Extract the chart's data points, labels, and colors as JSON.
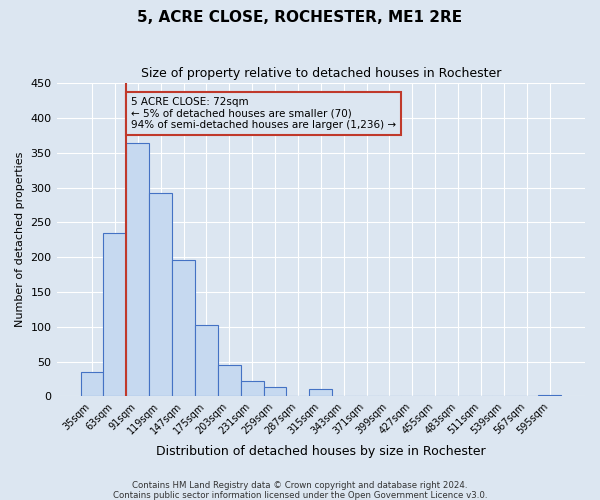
{
  "title": "5, ACRE CLOSE, ROCHESTER, ME1 2RE",
  "subtitle": "Size of property relative to detached houses in Rochester",
  "xlabel": "Distribution of detached houses by size in Rochester",
  "ylabel": "Number of detached properties",
  "footnote1": "Contains HM Land Registry data © Crown copyright and database right 2024.",
  "footnote2": "Contains public sector information licensed under the Open Government Licence v3.0.",
  "bar_labels": [
    "35sqm",
    "63sqm",
    "91sqm",
    "119sqm",
    "147sqm",
    "175sqm",
    "203sqm",
    "231sqm",
    "259sqm",
    "287sqm",
    "315sqm",
    "343sqm",
    "371sqm",
    "399sqm",
    "427sqm",
    "455sqm",
    "483sqm",
    "511sqm",
    "539sqm",
    "567sqm",
    "595sqm"
  ],
  "bar_values": [
    35,
    234,
    364,
    292,
    196,
    103,
    45,
    22,
    14,
    0,
    10,
    0,
    0,
    0,
    0,
    0,
    0,
    0,
    0,
    0,
    2
  ],
  "bar_color": "#c6d9f0",
  "bar_edge_color": "#4472c4",
  "background_color": "#dce6f1",
  "ylim": [
    0,
    450
  ],
  "yticks": [
    0,
    50,
    100,
    150,
    200,
    250,
    300,
    350,
    400,
    450
  ],
  "vline_color": "#c0392b",
  "annotation_title": "5 ACRE CLOSE: 72sqm",
  "annotation_line1": "← 5% of detached houses are smaller (70)",
  "annotation_line2": "94% of semi-detached houses are larger (1,236) →",
  "annotation_box_edge": "#c0392b",
  "grid_color": "#ffffff",
  "title_fontsize": 11,
  "subtitle_fontsize": 9,
  "ylabel_fontsize": 8,
  "xlabel_fontsize": 9,
  "tick_fontsize": 8,
  "xtick_fontsize": 7
}
